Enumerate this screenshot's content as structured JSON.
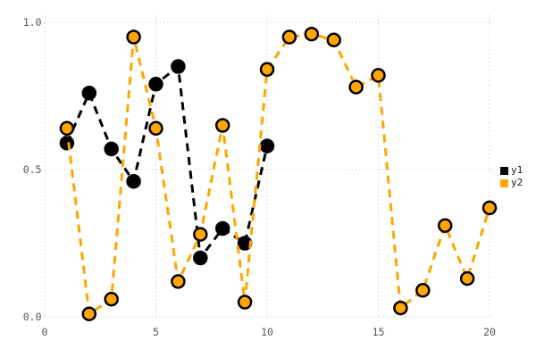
{
  "chart_data": {
    "type": "line",
    "title": "",
    "xlabel": "",
    "ylabel": "",
    "line_style": "dashed",
    "marker": "circle",
    "grid": "dotted",
    "legend_position": "right",
    "xlim": [
      0,
      20.2
    ],
    "ylim": [
      -0.01,
      1.02
    ],
    "x_ticks": [
      0,
      5,
      10,
      15,
      20
    ],
    "x_tick_labels": [
      "0",
      "5",
      "10",
      "15",
      "20"
    ],
    "y_ticks": [
      0.0,
      0.5,
      1.0
    ],
    "y_tick_labels": [
      "0.0",
      "0.5",
      "1.0"
    ],
    "series": [
      {
        "name": "y1",
        "color": "#000000",
        "x": [
          1,
          2,
          3,
          4,
          5,
          6,
          7,
          8,
          9,
          10
        ],
        "values": [
          0.59,
          0.76,
          0.57,
          0.46,
          0.79,
          0.85,
          0.2,
          0.3,
          0.25,
          0.58
        ]
      },
      {
        "name": "y2",
        "color": "#FFA500",
        "x": [
          1,
          2,
          3,
          4,
          5,
          6,
          7,
          8,
          9,
          10,
          11,
          12,
          13,
          14,
          15,
          16,
          17,
          18,
          19,
          20
        ],
        "values": [
          0.64,
          0.01,
          0.06,
          0.95,
          0.64,
          0.12,
          0.28,
          0.65,
          0.05,
          0.84,
          0.95,
          0.96,
          0.94,
          0.78,
          0.82,
          0.03,
          0.09,
          0.31,
          0.13,
          0.37
        ]
      }
    ],
    "colors": {
      "background": "#ffffff",
      "gridline": "#cfcfda",
      "tick_label": "#545454",
      "marker_edge": "#000000"
    }
  }
}
